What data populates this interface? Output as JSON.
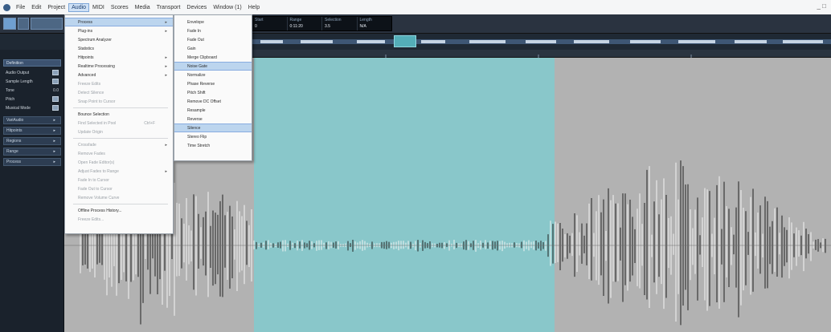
{
  "menubar": {
    "items": [
      "File",
      "Edit",
      "Project",
      "Audio",
      "MIDI",
      "Scores",
      "Media",
      "Transport",
      "Devices",
      "Window (1)",
      "Help"
    ],
    "active_index": 3,
    "window_controls": "_ □"
  },
  "transport": [
    {
      "label": "Start",
      "value": "0"
    },
    {
      "label": "Range",
      "value": "0:11:20"
    },
    {
      "label": "Selection",
      "value": "3.5"
    },
    {
      "label": "Length",
      "value": "N/A"
    }
  ],
  "sidebar": {
    "section_title": "Definition",
    "rows": [
      {
        "label": "Audio Output",
        "value": ""
      },
      {
        "label": "Sample Length",
        "value": ""
      },
      {
        "label": "Tone",
        "value": "0.0"
      },
      {
        "label": "Pitch",
        "value": ""
      },
      {
        "label": "Musical Mode",
        "value": ""
      }
    ],
    "folders": [
      "VariAudio",
      "Hitpoints",
      "Regions",
      "Range",
      "Process"
    ]
  },
  "audio_menu": {
    "items": [
      {
        "label": "Process",
        "arrow": true,
        "highlight": true
      },
      {
        "label": "Plug-ins",
        "arrow": true
      },
      {
        "label": "Spectrum Analyzer"
      },
      {
        "label": "Statistics"
      },
      {
        "label": "Hitpoints",
        "arrow": true
      },
      {
        "label": "Realtime Processing",
        "arrow": true
      },
      {
        "label": "Advanced",
        "arrow": true
      },
      {
        "label": "Freeze Edits",
        "disabled": true
      },
      {
        "label": "Detect Silence",
        "disabled": true
      },
      {
        "label": "Snap Point to Cursor",
        "disabled": true
      },
      {
        "label": "Bounce Selection",
        "separator_before": true
      },
      {
        "label": "Find Selected in Pool",
        "shortcut": "Ctrl+F",
        "disabled": true
      },
      {
        "label": "Update Origin",
        "disabled": true
      },
      {
        "label": "Crossfade",
        "arrow": true,
        "disabled": true,
        "separator_before": true
      },
      {
        "label": "Remove Fades",
        "disabled": true
      },
      {
        "label": "Open Fade Editor(s)",
        "disabled": true
      },
      {
        "label": "Adjust Fades to Range",
        "arrow": true,
        "disabled": true
      },
      {
        "label": "Fade In to Cursor",
        "disabled": true
      },
      {
        "label": "Fade Out to Cursor",
        "disabled": true
      },
      {
        "label": "Remove Volume Curve",
        "disabled": true
      },
      {
        "label": "Offline Process History...",
        "separator_before": true
      },
      {
        "label": "Freeze Edits...",
        "disabled": true
      }
    ]
  },
  "process_submenu": {
    "items": [
      {
        "label": "Envelope"
      },
      {
        "label": "Fade In"
      },
      {
        "label": "Fade Out"
      },
      {
        "label": "Gain"
      },
      {
        "label": "Merge Clipboard"
      },
      {
        "label": "Noise Gate",
        "highlight": true
      },
      {
        "label": "Normalize"
      },
      {
        "label": "Phase Reverse"
      },
      {
        "label": "Pitch Shift"
      },
      {
        "label": "Remove DC Offset"
      },
      {
        "label": "Resample"
      },
      {
        "label": "Reverse"
      },
      {
        "label": "Silence",
        "highlight": true
      },
      {
        "label": "Stereo Flip"
      },
      {
        "label": "Time Stretch"
      }
    ]
  },
  "colors": {
    "waveform_selection": "#89c7ca",
    "waveform_background": "#b2b2b2",
    "menu_highlight": "#bcd5ee",
    "overview_handle": "#54aeb8"
  },
  "icons": [
    "app-logo-icon",
    "arrow-icon",
    "minimize-icon",
    "maximize-icon",
    "folder-expand-icon"
  ]
}
